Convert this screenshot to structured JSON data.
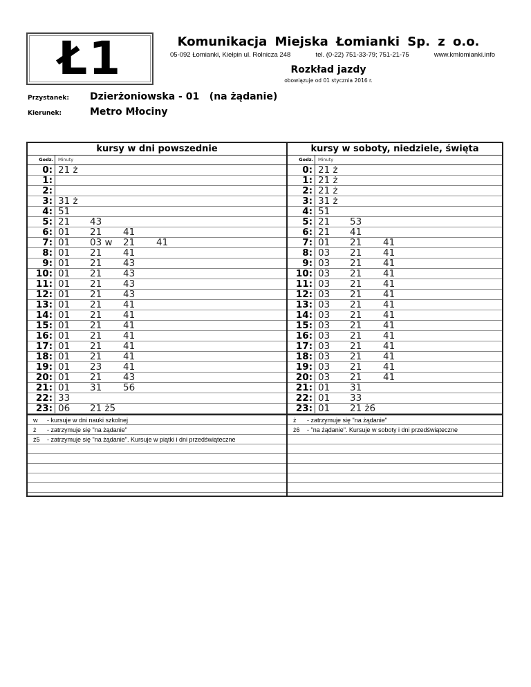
{
  "logo": {
    "line": "Ł1"
  },
  "header": {
    "company": "Komunikacja Miejska Łomianki Sp. z o.o.",
    "address": "05-092 Łomianki, Kiełpin ul. Rolnicza 248",
    "phone": "tel. (0-22) 751-33-79; 751-21-75",
    "website": "www.kmlomianki.info",
    "title": "Rozkład jazdy",
    "valid_from": "obowiązuje od 01 stycznia 2016 r."
  },
  "stop": {
    "label": "Przystanek:",
    "name": "Dzierżoniowska - 01   (na żądanie)"
  },
  "direction": {
    "label": "Kierunek:",
    "name": "Metro Młociny"
  },
  "weekday": {
    "title": "kursy w dni powszednie",
    "hour_header": "Godz.",
    "minutes_header": "Minuty",
    "rows": [
      {
        "hour": "0:",
        "minutes": [
          "21 ż"
        ]
      },
      {
        "hour": "1:",
        "minutes": []
      },
      {
        "hour": "2:",
        "minutes": []
      },
      {
        "hour": "3:",
        "minutes": [
          "31 ż"
        ]
      },
      {
        "hour": "4:",
        "minutes": [
          "51"
        ]
      },
      {
        "hour": "5:",
        "minutes": [
          "21",
          "43"
        ]
      },
      {
        "hour": "6:",
        "minutes": [
          "01",
          "21",
          "41"
        ]
      },
      {
        "hour": "7:",
        "minutes": [
          "01",
          "03 w",
          "21",
          "41"
        ]
      },
      {
        "hour": "8:",
        "minutes": [
          "01",
          "21",
          "41"
        ]
      },
      {
        "hour": "9:",
        "minutes": [
          "01",
          "21",
          "43"
        ]
      },
      {
        "hour": "10:",
        "minutes": [
          "01",
          "21",
          "43"
        ]
      },
      {
        "hour": "11:",
        "minutes": [
          "01",
          "21",
          "43"
        ]
      },
      {
        "hour": "12:",
        "minutes": [
          "01",
          "21",
          "43"
        ]
      },
      {
        "hour": "13:",
        "minutes": [
          "01",
          "21",
          "41"
        ]
      },
      {
        "hour": "14:",
        "minutes": [
          "01",
          "21",
          "41"
        ]
      },
      {
        "hour": "15:",
        "minutes": [
          "01",
          "21",
          "41"
        ]
      },
      {
        "hour": "16:",
        "minutes": [
          "01",
          "21",
          "41"
        ]
      },
      {
        "hour": "17:",
        "minutes": [
          "01",
          "21",
          "41"
        ]
      },
      {
        "hour": "18:",
        "minutes": [
          "01",
          "21",
          "41"
        ]
      },
      {
        "hour": "19:",
        "minutes": [
          "01",
          "23",
          "41"
        ]
      },
      {
        "hour": "20:",
        "minutes": [
          "01",
          "21",
          "43"
        ]
      },
      {
        "hour": "21:",
        "minutes": [
          "01",
          "31",
          "56"
        ]
      },
      {
        "hour": "22:",
        "minutes": [
          "33"
        ]
      },
      {
        "hour": "23:",
        "minutes": [
          "06",
          "21 ż5"
        ]
      }
    ],
    "legend": [
      {
        "symbol": "w",
        "text": "- kursuje w dni nauki szkolnej"
      },
      {
        "symbol": "ż",
        "text": "- zatrzymuje się \"na żądanie\""
      },
      {
        "symbol": "ż5",
        "text": "- zatrzymuje się \"na żądanie\". Kursuje w piątki i dni przedświąteczne"
      }
    ]
  },
  "weekend": {
    "title": "kursy w soboty, niedziele, święta",
    "hour_header": "Godz.",
    "minutes_header": "Minuty",
    "rows": [
      {
        "hour": "0:",
        "minutes": [
          "21 ż"
        ]
      },
      {
        "hour": "1:",
        "minutes": [
          "21 ż"
        ]
      },
      {
        "hour": "2:",
        "minutes": [
          "21 ż"
        ]
      },
      {
        "hour": "3:",
        "minutes": [
          "31 ż"
        ]
      },
      {
        "hour": "4:",
        "minutes": [
          "51"
        ]
      },
      {
        "hour": "5:",
        "minutes": [
          "21",
          "53"
        ]
      },
      {
        "hour": "6:",
        "minutes": [
          "21",
          "41"
        ]
      },
      {
        "hour": "7:",
        "minutes": [
          "01",
          "21",
          "41"
        ]
      },
      {
        "hour": "8:",
        "minutes": [
          "03",
          "21",
          "41"
        ]
      },
      {
        "hour": "9:",
        "minutes": [
          "03",
          "21",
          "41"
        ]
      },
      {
        "hour": "10:",
        "minutes": [
          "03",
          "21",
          "41"
        ]
      },
      {
        "hour": "11:",
        "minutes": [
          "03",
          "21",
          "41"
        ]
      },
      {
        "hour": "12:",
        "minutes": [
          "03",
          "21",
          "41"
        ]
      },
      {
        "hour": "13:",
        "minutes": [
          "03",
          "21",
          "41"
        ]
      },
      {
        "hour": "14:",
        "minutes": [
          "03",
          "21",
          "41"
        ]
      },
      {
        "hour": "15:",
        "minutes": [
          "03",
          "21",
          "41"
        ]
      },
      {
        "hour": "16:",
        "minutes": [
          "03",
          "21",
          "41"
        ]
      },
      {
        "hour": "17:",
        "minutes": [
          "03",
          "21",
          "41"
        ]
      },
      {
        "hour": "18:",
        "minutes": [
          "03",
          "21",
          "41"
        ]
      },
      {
        "hour": "19:",
        "minutes": [
          "03",
          "21",
          "41"
        ]
      },
      {
        "hour": "20:",
        "minutes": [
          "03",
          "21",
          "41"
        ]
      },
      {
        "hour": "21:",
        "minutes": [
          "01",
          "31"
        ]
      },
      {
        "hour": "22:",
        "minutes": [
          "01",
          "33"
        ]
      },
      {
        "hour": "23:",
        "minutes": [
          "01",
          "21 ż6"
        ]
      }
    ],
    "legend": [
      {
        "symbol": "ż",
        "text": "- zatrzymuje się \"na żądanie\""
      },
      {
        "symbol": "ż6",
        "text": "- \"na żądanie\". Kursuje w soboty i dni przedświąteczne"
      }
    ]
  }
}
